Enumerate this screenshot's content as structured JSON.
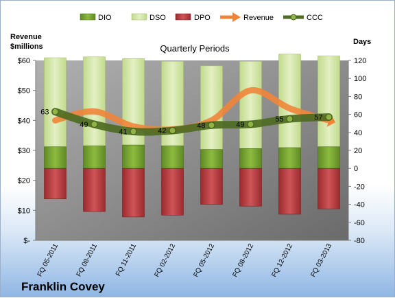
{
  "company": "Franklin Covey",
  "chart_data": {
    "type": "bar",
    "title": "Quarterly Periods",
    "categories": [
      "FQ 05-2011",
      "FQ 08-2011",
      "FQ 11-2011",
      "FQ 02-2012",
      "FQ 05-2012",
      "FQ 08-2012",
      "FQ 12-2012",
      "FQ 03-2013"
    ],
    "left_axis": {
      "label_line1": "Revenue",
      "label_line2": "$millions",
      "range": [
        0,
        60
      ],
      "ticks": [
        "$-",
        "$10",
        "$20",
        "$30",
        "$40",
        "$50",
        "$60"
      ]
    },
    "right_axis": {
      "label": "Days",
      "range": [
        -80,
        120
      ],
      "ticks": [
        "-80",
        "-60",
        "-40",
        "-20",
        "0",
        "20",
        "40",
        "60",
        "80",
        "100",
        "120"
      ]
    },
    "legend": {
      "placement": "top",
      "entries": [
        "DIO",
        "DSO",
        "DPO",
        "Revenue",
        "CCC"
      ]
    },
    "grid": false,
    "series": [
      {
        "name": "DIO",
        "axis": "days",
        "values": [
          24,
          25,
          26,
          25,
          21,
          22,
          23,
          24
        ]
      },
      {
        "name": "DSO",
        "axis": "days",
        "values": [
          99,
          99,
          96,
          94,
          93,
          97,
          104,
          101
        ]
      },
      {
        "name": "DPO",
        "axis": "days",
        "values": [
          -34,
          -48,
          -54,
          -52,
          -40,
          -42,
          -51,
          -45
        ]
      },
      {
        "name": "Revenue",
        "axis": "revenue",
        "values": [
          40,
          43,
          38,
          37,
          40,
          50,
          44,
          40
        ]
      },
      {
        "name": "CCC",
        "axis": "days",
        "values": [
          63,
          49,
          41,
          42,
          48,
          49,
          55,
          57
        ],
        "labels": [
          "63",
          "49",
          "41",
          "42",
          "48",
          "49",
          "55",
          "57"
        ]
      }
    ],
    "colors": {
      "DIO": "#6e9b2c",
      "DSO": "#d2e6a6",
      "DPO": "#b5383b",
      "Revenue": "#f0853a",
      "CCC": "#4e6b22",
      "plot_bg": "#8a8a8a"
    }
  }
}
